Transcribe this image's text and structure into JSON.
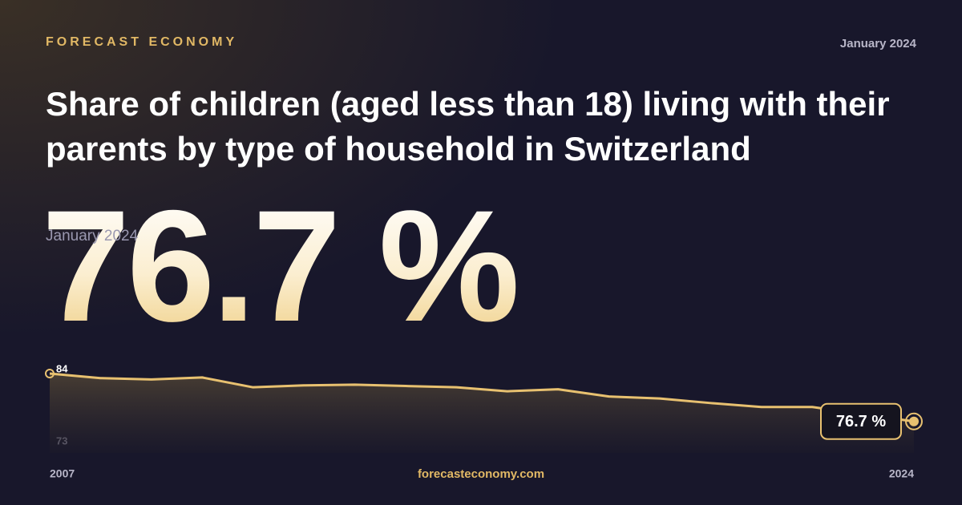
{
  "brand": "FORECAST ECONOMY",
  "date": "January 2024",
  "headline": "76.7 %",
  "headline_date": "January 2024",
  "site": "forecasteconomy.com",
  "chart_data": {
    "type": "line",
    "title": "Share of children (aged less than 18) living with their parents by type of household in Switzerland",
    "x": [
      2007,
      2008,
      2009,
      2010,
      2011,
      2012,
      2013,
      2014,
      2015,
      2016,
      2017,
      2018,
      2019,
      2020,
      2021,
      2022,
      2023,
      2024
    ],
    "values": [
      84,
      83.3,
      83.1,
      83.4,
      81.9,
      82.2,
      82.3,
      82.1,
      81.9,
      81.3,
      81.6,
      80.5,
      80.2,
      79.5,
      78.9,
      78.9,
      77.8,
      76.7
    ],
    "value_labels": [
      null,
      null,
      null,
      null,
      null,
      null,
      null,
      null,
      null,
      null,
      null,
      null,
      null,
      null,
      null,
      null,
      null,
      "76.7 %"
    ],
    "color": "#e8c170",
    "xlim": [
      2007,
      2024
    ],
    "xticks": [
      2007,
      2024
    ],
    "ylim": [
      73,
      84
    ],
    "yticks": [
      73,
      84
    ]
  }
}
